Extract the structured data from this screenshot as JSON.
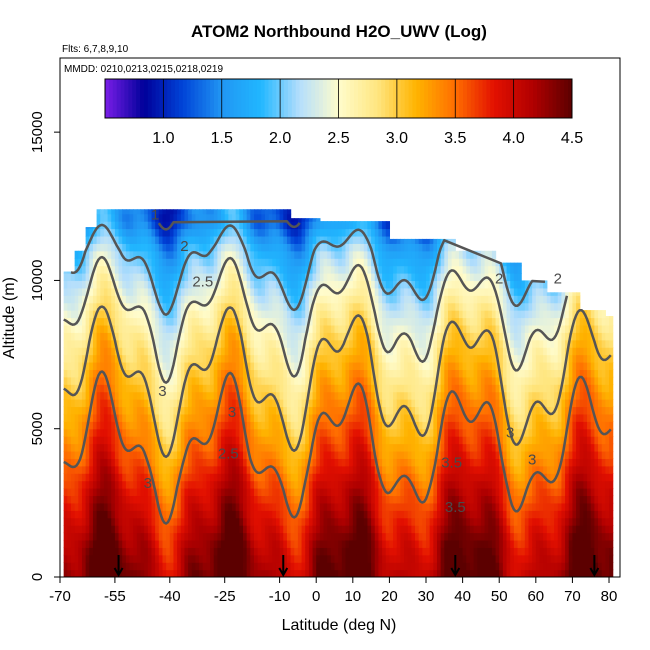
{
  "chart_data": {
    "type": "heatmap",
    "title": "ATOM2 Northbound H2O_UWV (Log)",
    "flights_note": "Flts: 6,7,8,9,10",
    "dates_note": "MMDD: 0210,0213,0215,0218,0219",
    "xlabel": "Latitude (deg N)",
    "ylabel": "Altitude (m)",
    "xlim": [
      -70,
      83
    ],
    "ylim": [
      0,
      17500
    ],
    "x_ticks": [
      {
        "value": -70,
        "label": "-70"
      },
      {
        "value": -55,
        "label": "-55"
      },
      {
        "value": -40,
        "label": "-40"
      },
      {
        "value": -25,
        "label": "-25"
      },
      {
        "value": -10,
        "label": "-10"
      },
      {
        "value": 0,
        "label": "0"
      },
      {
        "value": 10,
        "label": "10"
      },
      {
        "value": 20,
        "label": "20"
      },
      {
        "value": 30,
        "label": "30"
      },
      {
        "value": 40,
        "label": "40"
      },
      {
        "value": 50,
        "label": "50"
      },
      {
        "value": 60,
        "label": "60"
      },
      {
        "value": 70,
        "label": "70"
      },
      {
        "value": 80,
        "label": "80"
      }
    ],
    "y_ticks": [
      {
        "value": 0,
        "label": "0"
      },
      {
        "value": 5000,
        "label": "5000"
      },
      {
        "value": 10000,
        "label": "10000"
      },
      {
        "value": 15000,
        "label": "15000"
      }
    ],
    "colorbar": {
      "range": [
        0.5,
        4.5
      ],
      "ticks": [
        {
          "value": 1.0,
          "label": "1.0"
        },
        {
          "value": 1.5,
          "label": "1.5"
        },
        {
          "value": 2.0,
          "label": "2.0"
        },
        {
          "value": 2.5,
          "label": "2.5"
        },
        {
          "value": 3.0,
          "label": "3.0"
        },
        {
          "value": 3.5,
          "label": "3.5"
        },
        {
          "value": 4.0,
          "label": "4.0"
        },
        {
          "value": 4.5,
          "label": "4.5"
        }
      ],
      "colors": [
        "#7a1ee8",
        "#00009a",
        "#0044d8",
        "#2196f3",
        "#21b7ff",
        "#b4defc",
        "#fffccc",
        "#ffe680",
        "#ffb300",
        "#ff6e00",
        "#e31000",
        "#b00000",
        "#5c0000"
      ]
    },
    "contour_levels": [
      1,
      2,
      2.5,
      3,
      3.5
    ],
    "contour_labels": [
      {
        "text": "1",
        "x": -44,
        "y": 12050
      },
      {
        "text": "2",
        "x": -36,
        "y": 11000
      },
      {
        "text": "2",
        "x": 50,
        "y": 9900
      },
      {
        "text": "2.5",
        "x": -31,
        "y": 9800
      },
      {
        "text": "3",
        "x": -42,
        "y": 6100
      },
      {
        "text": "3",
        "x": -23,
        "y": 5400
      },
      {
        "text": "2.5",
        "x": -24,
        "y": 4000
      },
      {
        "text": "3",
        "x": -46,
        "y": 3000
      },
      {
        "text": "3.5",
        "x": 37,
        "y": 3700
      },
      {
        "text": "3.5",
        "x": 38,
        "y": 2200
      },
      {
        "text": "3",
        "x": 53,
        "y": 4700
      },
      {
        "text": "3",
        "x": 59,
        "y": 3800
      },
      {
        "text": "2",
        "x": 66,
        "y": 9900
      }
    ],
    "flight_profile_markers": [
      -54,
      -9,
      38,
      76
    ],
    "column_tops": [
      {
        "lat_from": -69,
        "lat_to": -66,
        "top": 10300
      },
      {
        "lat_from": -66,
        "lat_to": -63,
        "top": 11000
      },
      {
        "lat_from": -63,
        "lat_to": -60,
        "top": 11800
      },
      {
        "lat_from": -60,
        "lat_to": -7,
        "top": 12400
      },
      {
        "lat_from": -7,
        "lat_to": 1,
        "top": 12100
      },
      {
        "lat_from": 1,
        "lat_to": 20,
        "top": 12000
      },
      {
        "lat_from": 20,
        "lat_to": 38,
        "top": 11400
      },
      {
        "lat_from": 38,
        "lat_to": 49,
        "top": 11000
      },
      {
        "lat_from": 49,
        "lat_to": 56,
        "top": 10600
      },
      {
        "lat_from": 56,
        "lat_to": 63,
        "top": 10000
      },
      {
        "lat_from": 63,
        "lat_to": 72,
        "top": 9600
      },
      {
        "lat_from": 72,
        "lat_to": 79,
        "top": 9000
      },
      {
        "lat_from": 79,
        "lat_to": 81,
        "top": 8800
      }
    ],
    "field_profile": {
      "note": "Approximate log10 H2O values by altitude (m)",
      "altitude": [
        0,
        1000,
        2000,
        3000,
        4000,
        5000,
        6000,
        7000,
        8000,
        9000,
        10000,
        11000,
        12000
      ],
      "value": [
        4.35,
        4.2,
        4.0,
        3.8,
        3.55,
        3.35,
        3.15,
        2.95,
        2.75,
        2.5,
        2.2,
        1.9,
        1.4
      ]
    }
  }
}
